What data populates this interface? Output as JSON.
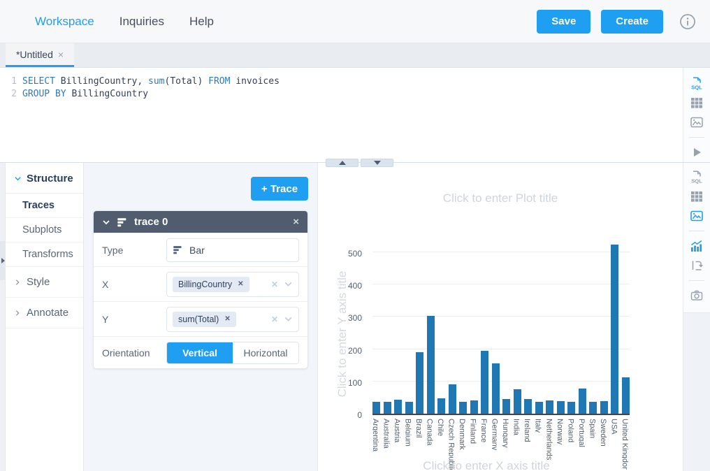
{
  "colors": {
    "accent": "#1e9ff2",
    "bar": "#1f77b4",
    "trace_header": "#515d6e"
  },
  "topbar": {
    "nav": [
      {
        "label": "Workspace",
        "active": true
      },
      {
        "label": "Inquiries",
        "active": false
      },
      {
        "label": "Help",
        "active": false
      }
    ],
    "save": "Save",
    "create": "Create",
    "info_icon": "info-icon"
  },
  "tab": {
    "title": "*Untitled",
    "close": "×"
  },
  "editor": {
    "lines": [
      {
        "n": "1",
        "tokens": [
          {
            "c": "k",
            "t": "SELECT"
          },
          {
            "c": "p",
            "t": " BillingCountry, "
          },
          {
            "c": "k",
            "t": "sum"
          },
          {
            "c": "p",
            "t": "(Total) "
          },
          {
            "c": "k",
            "t": "FROM"
          },
          {
            "c": "p",
            "t": " invoices"
          }
        ]
      },
      {
        "n": "2",
        "tokens": [
          {
            "c": "k",
            "t": "GROUP BY"
          },
          {
            "c": "p",
            "t": " BillingCountry"
          }
        ]
      }
    ]
  },
  "rail_top": {
    "items": [
      {
        "icon": "sql-file-icon",
        "active": true
      },
      {
        "icon": "table-icon",
        "active": false
      },
      {
        "icon": "image-icon",
        "active": false
      },
      {
        "icon": "run-icon",
        "active": false
      }
    ]
  },
  "rail_bottom": {
    "items": [
      {
        "icon": "sql-file-icon",
        "active": false
      },
      {
        "icon": "table-icon",
        "active": false
      },
      {
        "icon": "image-icon",
        "active": true
      },
      {
        "icon": "chart-icon",
        "active": true
      },
      {
        "icon": "resize-icon",
        "active": false
      },
      {
        "icon": "camera-icon",
        "active": false
      }
    ]
  },
  "sidebar": {
    "header": "Structure",
    "items": [
      {
        "label": "Traces",
        "active": true
      },
      {
        "label": "Subplots",
        "active": false
      },
      {
        "label": "Transforms",
        "active": false
      }
    ],
    "groups": [
      {
        "label": "Style"
      },
      {
        "label": "Annotate"
      }
    ]
  },
  "trace_editor": {
    "add_trace": "+ Trace",
    "trace_title": "trace 0",
    "close": "×",
    "type_label": "Type",
    "type_value": "Bar",
    "x_label": "X",
    "x_chip": {
      "label": "BillingCountry",
      "remove": "✕"
    },
    "y_label": "Y",
    "y_chip": {
      "label": "sum(Total)",
      "remove": "✕"
    },
    "clear_glyph": "✕",
    "orientation_label": "Orientation",
    "orientation_options": [
      {
        "label": "Vertical",
        "selected": true
      },
      {
        "label": "Horizontal",
        "selected": false
      }
    ]
  },
  "chart_data": {
    "type": "bar",
    "title_placeholder": "Click to enter Plot title",
    "xlabel_placeholder": "Click to enter X axis title",
    "ylabel_placeholder": "Click to enter Y axis title",
    "categories": [
      "Argentina",
      "Australia",
      "Austria",
      "Belgium",
      "Brazil",
      "Canada",
      "Chile",
      "Czech Republic",
      "Denmark",
      "Finland",
      "France",
      "Germany",
      "Hungary",
      "India",
      "Ireland",
      "Italy",
      "Netherlands",
      "Norway",
      "Poland",
      "Portugal",
      "Spain",
      "Sweden",
      "USA",
      "United Kingdom"
    ],
    "values": [
      37.6,
      37.6,
      42.6,
      37.6,
      190.1,
      304.0,
      46.6,
      90.2,
      37.6,
      41.6,
      195.1,
      156.5,
      45.6,
      75.3,
      45.6,
      37.6,
      40.6,
      39.6,
      37.6,
      77.2,
      37.6,
      38.6,
      523.1,
      112.9
    ],
    "yticks": [
      0,
      100,
      200,
      300,
      400,
      500
    ],
    "ylim": [
      0,
      543
    ],
    "grid": true,
    "legend": "none",
    "bar_color": "#1f77b4",
    "x_tick_rotation": 90
  }
}
